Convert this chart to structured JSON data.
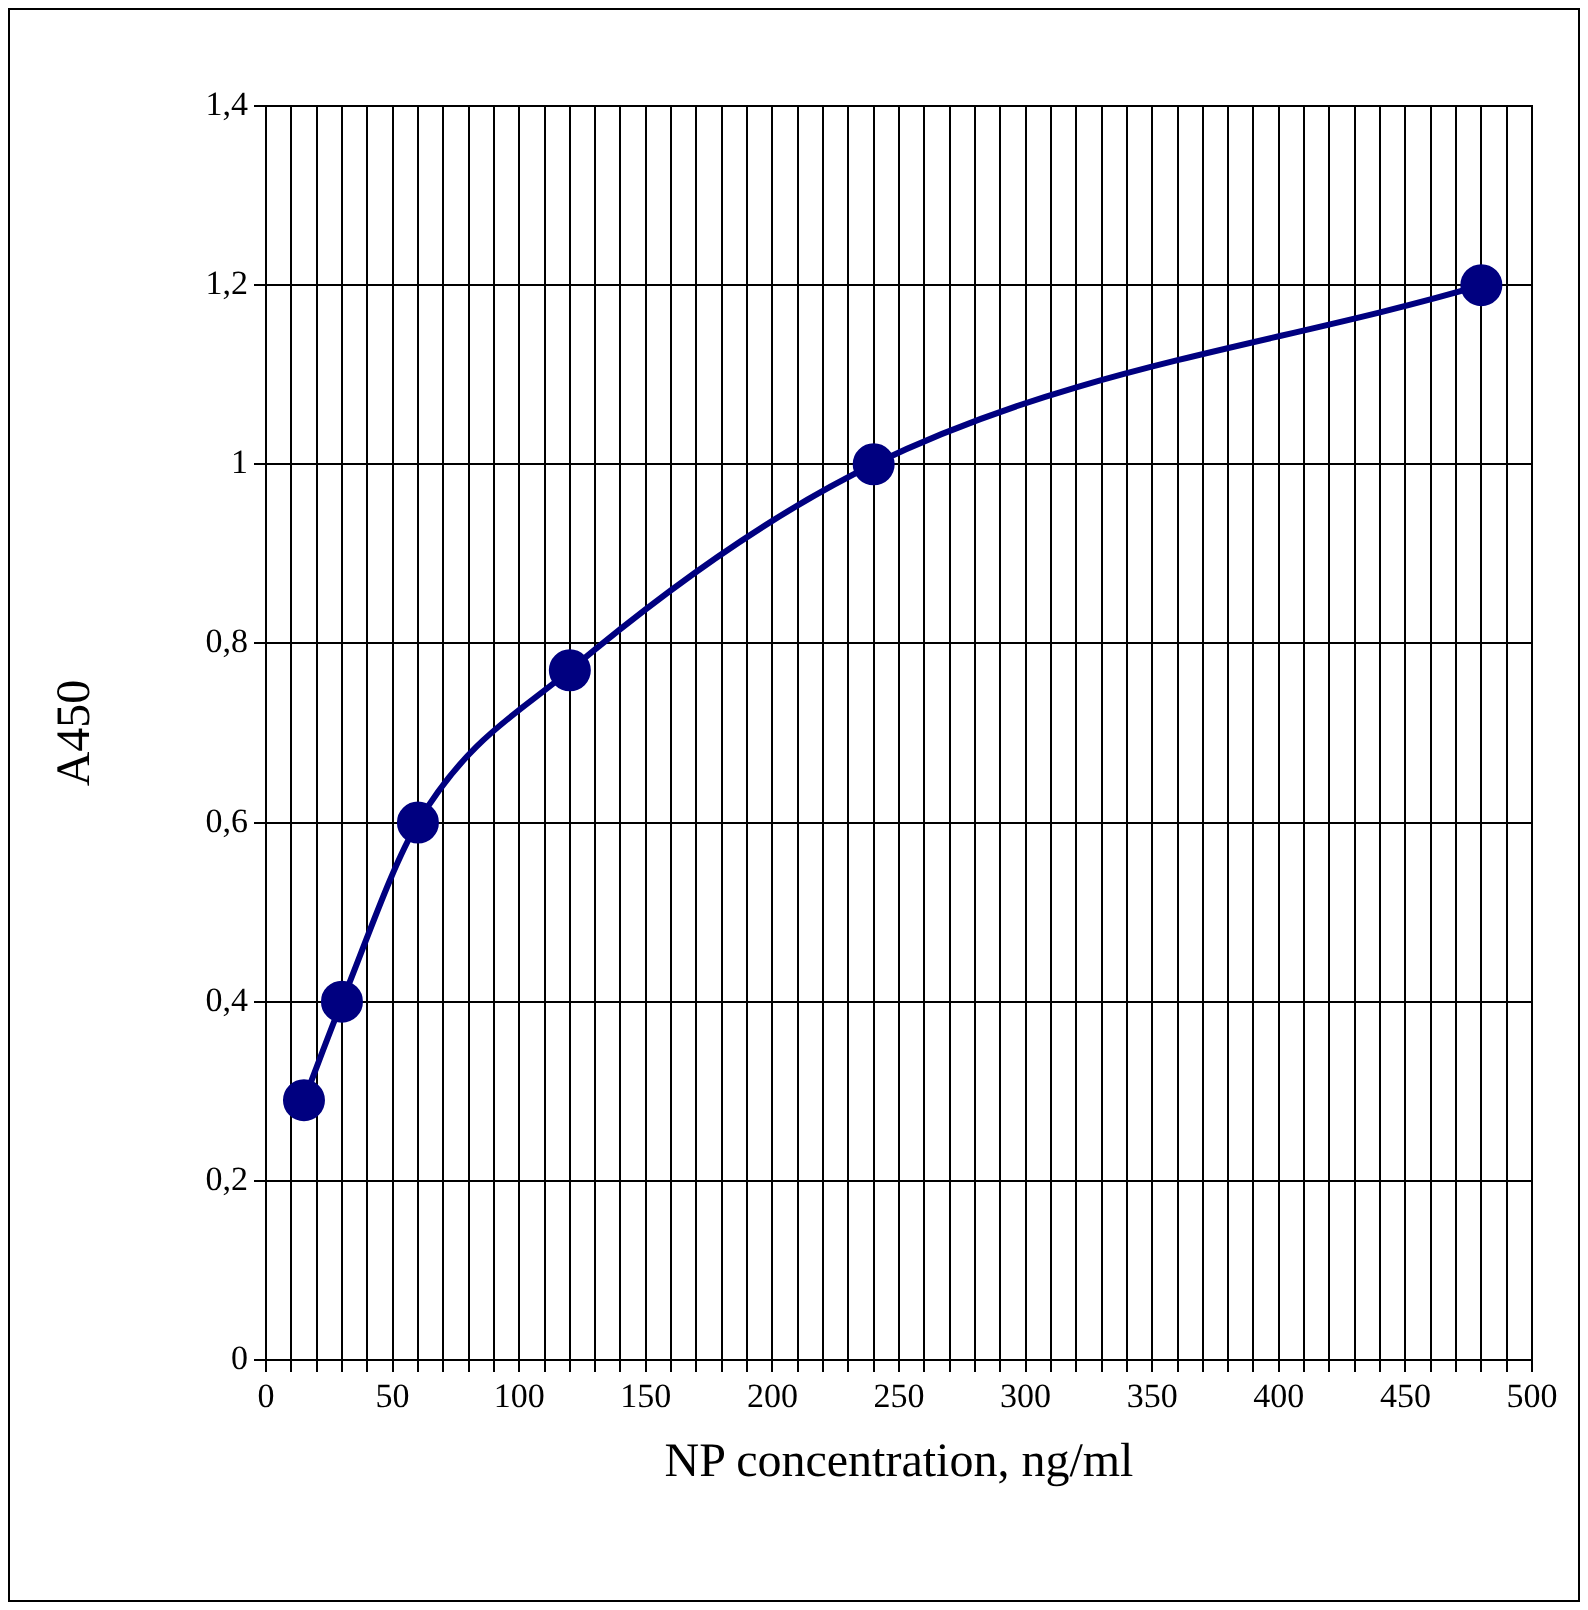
{
  "chart_data": {
    "type": "line",
    "xlabel": "NP concentration, ng/ml",
    "ylabel": "A450",
    "x": [
      15,
      30,
      60,
      120,
      240,
      480
    ],
    "series": [
      {
        "color": "#000080",
        "values": [
          0.29,
          0.4,
          0.6,
          0.77,
          1.0,
          1.2
        ]
      }
    ],
    "xlim": [
      0,
      500
    ],
    "xticks": [
      0,
      {
        "value": 10,
        "label": null
      },
      {
        "value": 20,
        "label": null
      },
      {
        "value": 30,
        "label": null
      },
      {
        "value": 40,
        "label": null
      },
      50,
      {
        "value": 60,
        "label": null
      },
      {
        "value": 70,
        "label": null
      },
      {
        "value": 80,
        "label": null
      },
      {
        "value": 90,
        "label": null
      },
      100,
      {
        "value": 110,
        "label": null
      },
      {
        "value": 120,
        "label": null
      },
      {
        "value": 130,
        "label": null
      },
      {
        "value": 140,
        "label": null
      },
      150,
      {
        "value": 160,
        "label": null
      },
      {
        "value": 170,
        "label": null
      },
      {
        "value": 180,
        "label": null
      },
      {
        "value": 190,
        "label": null
      },
      200,
      {
        "value": 210,
        "label": null
      },
      {
        "value": 220,
        "label": null
      },
      {
        "value": 230,
        "label": null
      },
      {
        "value": 240,
        "label": null
      },
      250,
      {
        "value": 260,
        "label": null
      },
      {
        "value": 270,
        "label": null
      },
      {
        "value": 280,
        "label": null
      },
      {
        "value": 290,
        "label": null
      },
      300,
      {
        "value": 310,
        "label": null
      },
      {
        "value": 320,
        "label": null
      },
      {
        "value": 330,
        "label": null
      },
      {
        "value": 340,
        "label": null
      },
      350,
      {
        "value": 360,
        "label": null
      },
      {
        "value": 370,
        "label": null
      },
      {
        "value": 380,
        "label": null
      },
      {
        "value": 390,
        "label": null
      },
      400,
      {
        "value": 410,
        "label": null
      },
      {
        "value": 420,
        "label": null
      },
      {
        "value": 430,
        "label": null
      },
      {
        "value": 440,
        "label": null
      },
      450,
      {
        "value": 460,
        "label": null
      },
      {
        "value": 470,
        "label": null
      },
      {
        "value": 480,
        "label": null
      },
      {
        "value": 490,
        "label": null
      },
      500
    ],
    "ylim": [
      0,
      1.4
    ],
    "yticks": [
      0,
      {
        "value": 0.2,
        "label": "0,2"
      },
      {
        "value": 0.4,
        "label": "0,4"
      },
      {
        "value": 0.6,
        "label": "0,6"
      },
      {
        "value": 0.8,
        "label": "0,8"
      },
      1,
      {
        "value": 1.2,
        "label": "1,2"
      },
      {
        "value": 1.4,
        "label": "1,4"
      }
    ],
    "grid": true,
    "legend": false,
    "marker": "circle",
    "line_style": "solid"
  }
}
